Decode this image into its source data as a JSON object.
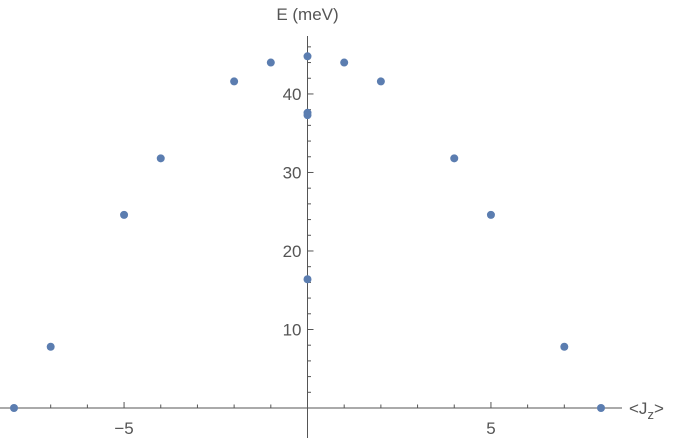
{
  "chart_data": {
    "type": "scatter",
    "title": "",
    "xlabel": "<J",
    "xlabel_subscript": "z",
    "xlabel_suffix": ">",
    "ylabel": "E (meV)",
    "xlim": [
      -8,
      8
    ],
    "ylim": [
      0,
      47
    ],
    "x_ticks": [
      {
        "value": -5,
        "label": "−5"
      },
      {
        "value": 5,
        "label": "5"
      }
    ],
    "y_ticks": [
      {
        "value": 10,
        "label": "10"
      },
      {
        "value": 20,
        "label": "20"
      },
      {
        "value": 30,
        "label": "30"
      },
      {
        "value": 40,
        "label": "40"
      }
    ],
    "grid": false,
    "marker_color": "#5b7db0",
    "axis_color": "#555555",
    "points": [
      {
        "x": -8,
        "y": 0
      },
      {
        "x": -7,
        "y": 7.8
      },
      {
        "x": -5,
        "y": 24.6
      },
      {
        "x": -4,
        "y": 31.8
      },
      {
        "x": -2,
        "y": 41.6
      },
      {
        "x": -1,
        "y": 44.0
      },
      {
        "x": 0,
        "y": 44.8
      },
      {
        "x": 0,
        "y": 37.6
      },
      {
        "x": 0,
        "y": 37.3
      },
      {
        "x": 0,
        "y": 16.4
      },
      {
        "x": 1,
        "y": 44.0
      },
      {
        "x": 2,
        "y": 41.6
      },
      {
        "x": 4,
        "y": 31.8
      },
      {
        "x": 5,
        "y": 24.6
      },
      {
        "x": 7,
        "y": 7.8
      },
      {
        "x": 8,
        "y": 0
      }
    ]
  }
}
